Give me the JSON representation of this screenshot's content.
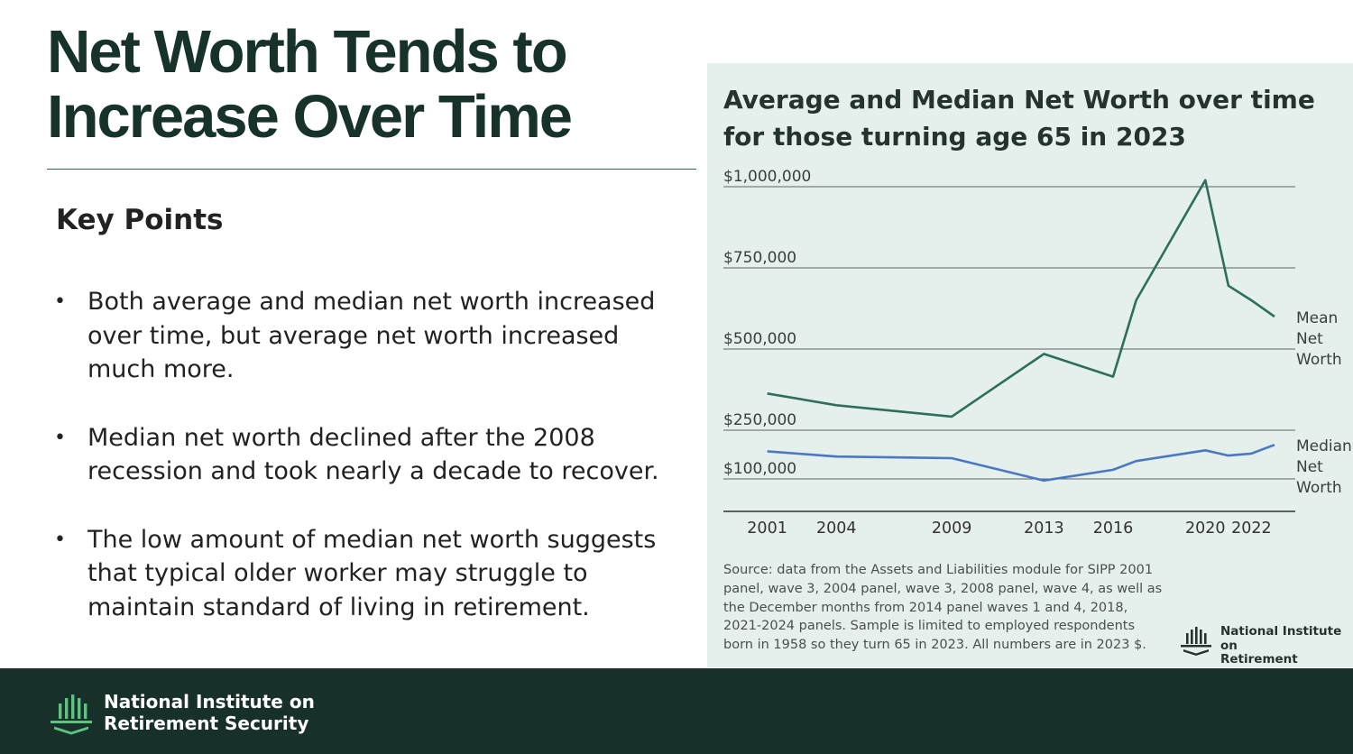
{
  "title": {
    "line1": "Net Worth Tends to",
    "line2": "Increase Over Time"
  },
  "key_points": {
    "heading": "Key Points",
    "bullets": [
      "Both average and median net worth increased over time, but average net worth increased much more.",
      "Median net worth declined after the 2008 recession and took nearly a decade to recover.",
      "The low amount of median net worth suggests that typical older worker may struggle to maintain standard of living in retirement."
    ]
  },
  "chart_data": {
    "type": "line",
    "title": "Average and Median Net Worth over time for those turning age 65 in 2023",
    "x_ticks": [
      2001,
      2004,
      2009,
      2013,
      2016,
      2020,
      2022
    ],
    "y_ticks": [
      {
        "value": 100000,
        "label": "$100,000"
      },
      {
        "value": 250000,
        "label": "$250,000"
      },
      {
        "value": 500000,
        "label": "$500,000"
      },
      {
        "value": 750000,
        "label": "$750,000"
      },
      {
        "value": 1000000,
        "label": "$1,000,000"
      }
    ],
    "ylim": [
      0,
      1000000
    ],
    "xlim": [
      1999.1,
      2023.9
    ],
    "series": [
      {
        "name": "Mean Net Worth",
        "label_lines": [
          "Mean",
          "Net",
          "Worth"
        ],
        "color": "#2d6e5d",
        "points": [
          [
            2001,
            363000
          ],
          [
            2004,
            327000
          ],
          [
            2009,
            292000
          ],
          [
            2013,
            485000
          ],
          [
            2016,
            415000
          ],
          [
            2017,
            650000
          ],
          [
            2020,
            1020000
          ],
          [
            2021,
            695000
          ],
          [
            2022,
            650000
          ],
          [
            2023,
            600000
          ]
        ]
      },
      {
        "name": "Median Net Worth",
        "label_lines": [
          "Median",
          "Net",
          "Worth"
        ],
        "color": "#4a78c2",
        "points": [
          [
            2001,
            185000
          ],
          [
            2004,
            169000
          ],
          [
            2009,
            164000
          ],
          [
            2013,
            95000
          ],
          [
            2016,
            128000
          ],
          [
            2017,
            155000
          ],
          [
            2020,
            188000
          ],
          [
            2021,
            172000
          ],
          [
            2022,
            178000
          ],
          [
            2023,
            205000
          ]
        ]
      }
    ],
    "source": "Source: data from the Assets and Liabilities module for SIPP 2001 panel, wave 3, 2004 panel, wave 3, 2008 panel, wave 4, as well as the December months from 2014 panel waves 1 and 4, 2018, 2021-2024 panels. Sample is limited to employed respondents born in 1958 so they turn 65 in 2023. All numbers are in 2023 $."
  },
  "organization": {
    "line1": "National Institute on",
    "line2": "Retirement Security"
  },
  "colors": {
    "dark_green": "#17302a",
    "panel_bg": "#e5efec",
    "mean": "#2d6e5d",
    "median": "#4a78c2"
  }
}
